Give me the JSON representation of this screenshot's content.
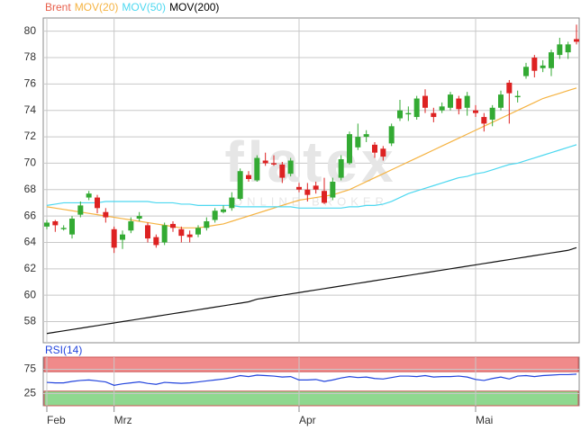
{
  "chart_data": [
    {
      "type": "candlestick",
      "name": "Brent",
      "up_color": "#33aa33",
      "down_color": "#dd2222",
      "legend_color": "#e8604c",
      "watermark": "flatex",
      "watermark_sub": "ONLINE BROKER",
      "categories": [
        "Feb",
        null,
        null,
        null,
        null,
        null,
        null,
        null,
        "Mrz",
        null,
        null,
        null,
        null,
        null,
        null,
        null,
        null,
        null,
        null,
        null,
        null,
        null,
        null,
        null,
        null,
        null,
        null,
        null,
        null,
        null,
        "Apr",
        null,
        null,
        null,
        null,
        null,
        null,
        null,
        null,
        null,
        null,
        null,
        null,
        null,
        null,
        null,
        null,
        null,
        null,
        null,
        null,
        "Mai",
        null,
        null,
        null,
        null,
        null,
        null,
        null,
        null,
        null,
        null,
        null,
        null
      ],
      "open": [
        65.2,
        65.6,
        65.0,
        64.6,
        66.1,
        67.4,
        67.4,
        66.3,
        65.0,
        64.2,
        64.9,
        65.8,
        65.3,
        64.4,
        64.0,
        65.4,
        65.0,
        64.6,
        64.6,
        65.1,
        65.7,
        66.3,
        66.6,
        67.3,
        69.1,
        68.7,
        70.2,
        70.0,
        69.9,
        69.2,
        68.2,
        68.0,
        68.3,
        67.9,
        67.4,
        68.9,
        70.0,
        71.2,
        72.0,
        71.4,
        71.1,
        71.5,
        73.4,
        73.7,
        73.5,
        75.1,
        73.8,
        74.0,
        74.2,
        74.9,
        74.2,
        74.0,
        73.5,
        73.3,
        74.2,
        76.1,
        75.0,
        76.6,
        78.0,
        77.2,
        77.2,
        78.2,
        78.4,
        79.4
      ],
      "high": [
        65.7,
        65.7,
        65.3,
        66.0,
        67.1,
        67.9,
        67.6,
        66.6,
        65.2,
        64.9,
        65.9,
        66.3,
        65.5,
        64.6,
        65.5,
        65.6,
        65.2,
        64.9,
        65.3,
        65.9,
        66.6,
        66.8,
        67.8,
        69.6,
        69.4,
        70.6,
        70.8,
        70.6,
        70.1,
        70.4,
        68.5,
        68.5,
        68.6,
        68.9,
        68.9,
        70.6,
        72.4,
        73.0,
        72.5,
        71.6,
        71.3,
        73.0,
        74.8,
        74.3,
        75.1,
        75.6,
        74.2,
        74.6,
        75.4,
        75.1,
        75.4,
        74.4,
        73.8,
        74.4,
        75.5,
        76.3,
        75.5,
        77.6,
        78.2,
        77.8,
        78.6,
        79.5,
        79.2,
        80.5
      ],
      "low": [
        65.0,
        64.8,
        64.9,
        64.3,
        65.9,
        67.2,
        66.2,
        65.5,
        63.2,
        63.5,
        64.7,
        65.6,
        64.0,
        63.6,
        63.8,
        64.8,
        64.0,
        64.0,
        64.4,
        64.9,
        65.5,
        66.2,
        66.4,
        67.2,
        68.6,
        68.6,
        69.8,
        69.8,
        68.5,
        69.0,
        67.8,
        67.1,
        67.7,
        66.9,
        67.2,
        68.7,
        69.9,
        71.0,
        71.6,
        70.4,
        70.2,
        71.3,
        73.2,
        73.2,
        73.3,
        73.8,
        73.1,
        73.8,
        74.0,
        73.7,
        73.6,
        73.5,
        72.4,
        72.8,
        74.0,
        73.0,
        74.6,
        76.4,
        76.5,
        76.9,
        76.6,
        77.9,
        77.9,
        79.0
      ],
      "close": [
        65.5,
        65.3,
        65.1,
        65.8,
        66.8,
        67.7,
        66.6,
        65.9,
        63.6,
        64.6,
        65.6,
        66.0,
        64.3,
        63.8,
        65.3,
        65.1,
        64.5,
        64.4,
        65.1,
        65.6,
        66.4,
        66.5,
        67.4,
        69.4,
        68.8,
        70.4,
        70.0,
        69.9,
        68.9,
        70.2,
        68.0,
        67.6,
        68.0,
        67.0,
        68.6,
        70.3,
        72.2,
        72.0,
        72.2,
        70.8,
        70.5,
        72.8,
        74.0,
        73.8,
        74.9,
        74.2,
        73.5,
        74.3,
        75.2,
        74.1,
        75.1,
        73.8,
        73.0,
        74.2,
        75.2,
        75.3,
        75.1,
        77.3,
        77.0,
        77.4,
        78.4,
        79.0,
        79.0,
        79.2
      ],
      "series": [
        {
          "name": "MOV(20)",
          "color": "#f5b342",
          "values": [
            66.7,
            66.6,
            66.5,
            66.4,
            66.3,
            66.2,
            66.1,
            66.0,
            65.9,
            65.8,
            65.7,
            65.6,
            65.5,
            65.4,
            65.3,
            65.2,
            65.1,
            65.1,
            65.1,
            65.2,
            65.3,
            65.4,
            65.6,
            65.8,
            66.0,
            66.2,
            66.4,
            66.6,
            66.8,
            67.0,
            67.2,
            67.3,
            67.4,
            67.5,
            67.6,
            67.8,
            68.0,
            68.3,
            68.6,
            68.9,
            69.2,
            69.5,
            69.8,
            70.1,
            70.4,
            70.7,
            71.0,
            71.3,
            71.6,
            71.9,
            72.2,
            72.5,
            72.8,
            73.1,
            73.4,
            73.7,
            74.0,
            74.3,
            74.6,
            74.9,
            75.1,
            75.3,
            75.5,
            75.7
          ]
        },
        {
          "name": "MOV(50)",
          "color": "#4dd8f0",
          "values": [
            66.8,
            66.9,
            67.0,
            67.0,
            67.0,
            67.0,
            67.0,
            67.1,
            67.1,
            67.1,
            67.1,
            67.1,
            67.1,
            67.0,
            67.0,
            67.0,
            66.9,
            66.9,
            66.8,
            66.8,
            66.8,
            66.8,
            66.8,
            66.7,
            66.7,
            66.7,
            66.7,
            66.7,
            66.7,
            66.7,
            66.6,
            66.6,
            66.6,
            66.6,
            66.6,
            66.6,
            66.7,
            66.7,
            66.8,
            66.8,
            66.9,
            67.1,
            67.4,
            67.7,
            67.9,
            68.1,
            68.3,
            68.5,
            68.7,
            68.9,
            69.0,
            69.2,
            69.3,
            69.5,
            69.7,
            69.9,
            70.0,
            70.2,
            70.4,
            70.6,
            70.8,
            71.0,
            71.2,
            71.4
          ]
        },
        {
          "name": "MOV(200)",
          "color": "#111111",
          "values": [
            57.1,
            57.2,
            57.3,
            57.4,
            57.5,
            57.6,
            57.7,
            57.8,
            57.9,
            58.0,
            58.1,
            58.2,
            58.3,
            58.4,
            58.5,
            58.6,
            58.7,
            58.8,
            58.9,
            59.0,
            59.1,
            59.2,
            59.3,
            59.4,
            59.5,
            59.7,
            59.8,
            59.9,
            60.0,
            60.1,
            60.2,
            60.3,
            60.4,
            60.5,
            60.6,
            60.7,
            60.8,
            60.9,
            61.0,
            61.1,
            61.2,
            61.3,
            61.4,
            61.5,
            61.6,
            61.7,
            61.8,
            61.9,
            62.0,
            62.1,
            62.2,
            62.3,
            62.4,
            62.5,
            62.6,
            62.7,
            62.8,
            62.9,
            63.0,
            63.1,
            63.2,
            63.3,
            63.4,
            63.6
          ]
        }
      ],
      "ylim": [
        56.4,
        81
      ],
      "yticks": [
        58,
        60,
        62,
        64,
        66,
        68,
        70,
        72,
        74,
        76,
        78,
        80
      ],
      "grid": true
    },
    {
      "type": "line",
      "series": [
        {
          "name": "RSI(14)",
          "color": "#2244dd",
          "values": [
            48,
            47,
            47,
            50,
            52,
            53,
            51,
            49,
            42,
            45,
            47,
            49,
            46,
            44,
            48,
            47,
            46,
            47,
            49,
            51,
            53,
            55,
            58,
            62,
            60,
            63,
            62,
            61,
            59,
            60,
            53,
            53,
            54,
            50,
            53,
            57,
            60,
            58,
            59,
            56,
            55,
            58,
            61,
            61,
            60,
            62,
            59,
            60,
            60,
            61,
            59,
            54,
            52,
            56,
            59,
            55,
            61,
            62,
            60,
            62,
            63,
            64,
            64,
            65
          ]
        }
      ],
      "bands": [
        {
          "from": 70,
          "to": 100,
          "color": "#f08a8a"
        },
        {
          "from": 0,
          "to": 30,
          "color": "#8fd88f"
        }
      ],
      "ylim": [
        0,
        100
      ],
      "yticks": [
        25,
        75
      ],
      "grid": true
    }
  ]
}
